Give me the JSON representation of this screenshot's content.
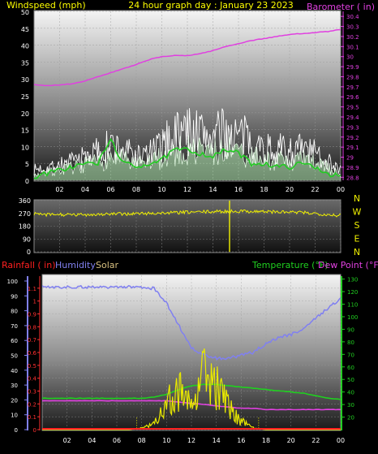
{
  "header": {
    "left": "Windspeed (mph)",
    "center": "24 hour graph day : January 23 2023",
    "right": "Barometer ( in)"
  },
  "colors": {
    "wind": "#ffffff",
    "gust": "#ffffff",
    "avg": "#22cc22",
    "baro": "#e040e0",
    "dir": "#f0f000",
    "humidity": "#8080f0",
    "solar": "#e8e800",
    "temp": "#20d020",
    "dew": "#e040e0",
    "rain": "#ff2020",
    "rainAxis": "#ff3030",
    "axisText": "#ffffff",
    "header": "#ffff00"
  },
  "chart_data": [
    {
      "type": "line",
      "name": "wind-barometer",
      "xlabel": "",
      "x_ticks": [
        "02",
        "04",
        "06",
        "08",
        "10",
        "12",
        "14",
        "16",
        "18",
        "20",
        "22",
        "00"
      ],
      "y_left_label": "Windspeed (mph)",
      "y_left_ticks": [
        0,
        5,
        10,
        15,
        20,
        25,
        30,
        35,
        40,
        45,
        50
      ],
      "ylim_left": [
        0,
        50
      ],
      "y_right_label": "Barometer ( in)",
      "y_right_ticks": [
        28.8,
        28.9,
        29,
        29.1,
        29.2,
        29.3,
        29.4,
        29.5,
        29.6,
        29.7,
        29.8,
        29.9,
        30,
        30.1,
        30.2,
        30.3,
        30.4
      ],
      "ylim_right": [
        28.77,
        30.45
      ],
      "hours": [
        0,
        1,
        2,
        3,
        4,
        5,
        6,
        7,
        8,
        9,
        10,
        11,
        12,
        13,
        14,
        15,
        16,
        17,
        18,
        19,
        20,
        21,
        22,
        23,
        24
      ],
      "series": [
        {
          "name": "Gust",
          "values": [
            4,
            5,
            6,
            7,
            9,
            11,
            13,
            12,
            9,
            10,
            13,
            18,
            19,
            18,
            17,
            18,
            17,
            15,
            12,
            12,
            11,
            12,
            10,
            8,
            4
          ]
        },
        {
          "name": "Wind",
          "values": [
            2,
            3,
            4,
            5,
            6,
            7,
            9,
            8,
            6,
            7,
            9,
            11,
            12,
            12,
            11,
            12,
            11,
            9,
            8,
            8,
            7,
            8,
            7,
            5,
            2
          ]
        },
        {
          "name": "Average",
          "values": [
            1,
            2,
            3,
            4,
            5,
            5,
            12,
            5,
            4,
            5,
            6,
            9,
            9,
            8,
            7,
            9,
            8,
            5,
            5,
            4,
            4,
            5,
            4,
            2,
            1
          ]
        },
        {
          "name": "Barometer",
          "values": [
            29.72,
            29.71,
            29.72,
            29.73,
            29.76,
            29.8,
            29.84,
            29.88,
            29.92,
            29.97,
            30.0,
            30.01,
            30.01,
            30.03,
            30.06,
            30.1,
            30.13,
            30.16,
            30.18,
            30.2,
            30.22,
            30.23,
            30.24,
            30.25,
            30.27
          ]
        }
      ]
    },
    {
      "type": "line",
      "name": "wind-direction",
      "y_ticks": [
        0,
        90,
        180,
        270,
        360
      ],
      "ylim": [
        0,
        360
      ],
      "compass": [
        "N",
        "W",
        "S",
        "E",
        "N"
      ],
      "hours": [
        0,
        1,
        2,
        3,
        4,
        5,
        6,
        7,
        8,
        9,
        10,
        11,
        12,
        13,
        14,
        15,
        16,
        17,
        18,
        19,
        20,
        21,
        22,
        23,
        24
      ],
      "series": [
        {
          "name": "Direction",
          "values": [
            265,
            260,
            262,
            258,
            262,
            264,
            265,
            266,
            268,
            270,
            272,
            275,
            278,
            280,
            282,
            284,
            286,
            285,
            283,
            280,
            278,
            275,
            270,
            262,
            255
          ]
        }
      ],
      "annotations": [
        {
          "hour": 15.3,
          "value_from": 0,
          "value_to": 360
        }
      ]
    },
    {
      "type": "line",
      "name": "rain-humidity-solar-temp-dew",
      "legend": [
        "Rainfall ( in)",
        "Humidity",
        "Solar",
        "Temperature (°F)",
        "Dew Point (°F)"
      ],
      "x_ticks": [
        "02",
        "04",
        "06",
        "08",
        "10",
        "12",
        "14",
        "16",
        "18",
        "20",
        "22",
        "00"
      ],
      "y_rain_ticks": [
        0,
        0.1,
        0.2,
        0.3,
        0.4,
        0.5,
        0.6,
        0.7,
        0.8,
        0.9,
        1,
        1.1
      ],
      "ylim_rain": [
        0,
        1.2
      ],
      "y_pct_ticks": [
        0,
        10,
        20,
        30,
        40,
        50,
        60,
        70,
        80,
        90,
        100
      ],
      "ylim_pct": [
        0,
        100
      ],
      "y_temp_ticks": [
        20,
        30,
        40,
        50,
        60,
        70,
        80,
        90,
        100,
        110,
        120,
        130
      ],
      "ylim_temp": [
        10,
        133
      ],
      "hours": [
        0,
        1,
        2,
        3,
        4,
        5,
        6,
        7,
        8,
        9,
        10,
        11,
        12,
        13,
        14,
        15,
        16,
        17,
        18,
        19,
        20,
        21,
        22,
        23,
        24
      ],
      "series": [
        {
          "name": "Humidity",
          "values": [
            96,
            96,
            96,
            96,
            96,
            96,
            96,
            96,
            96,
            95,
            85,
            70,
            55,
            50,
            48,
            48,
            50,
            52,
            58,
            62,
            64,
            68,
            75,
            82,
            88
          ]
        },
        {
          "name": "Temperature (°F)",
          "values": [
            35,
            35,
            35,
            35,
            35,
            35,
            35,
            35,
            35,
            36,
            38,
            42,
            45,
            46,
            46,
            45,
            44,
            43,
            42,
            41,
            40,
            39,
            37,
            35,
            34
          ]
        },
        {
          "name": "Dew Point (°F)",
          "values": [
            33,
            33,
            33,
            33,
            33,
            33,
            33,
            33,
            33,
            33,
            33,
            32,
            31,
            30,
            29,
            28,
            27,
            27,
            26,
            26,
            26,
            26,
            26,
            26,
            26
          ]
        },
        {
          "name": "Solar",
          "values": [
            0,
            0,
            0,
            0,
            0,
            0,
            0,
            0,
            1,
            5,
            20,
            28,
            24,
            45,
            30,
            15,
            6,
            1,
            0,
            0,
            0,
            0,
            0,
            0,
            0
          ]
        },
        {
          "name": "Rainfall ( in)",
          "values": [
            0,
            0,
            0,
            0,
            0,
            0,
            0,
            0,
            0,
            0,
            0,
            0,
            0,
            0,
            0,
            0,
            0,
            0,
            0,
            0,
            0,
            0,
            0,
            0,
            0
          ]
        }
      ]
    }
  ]
}
